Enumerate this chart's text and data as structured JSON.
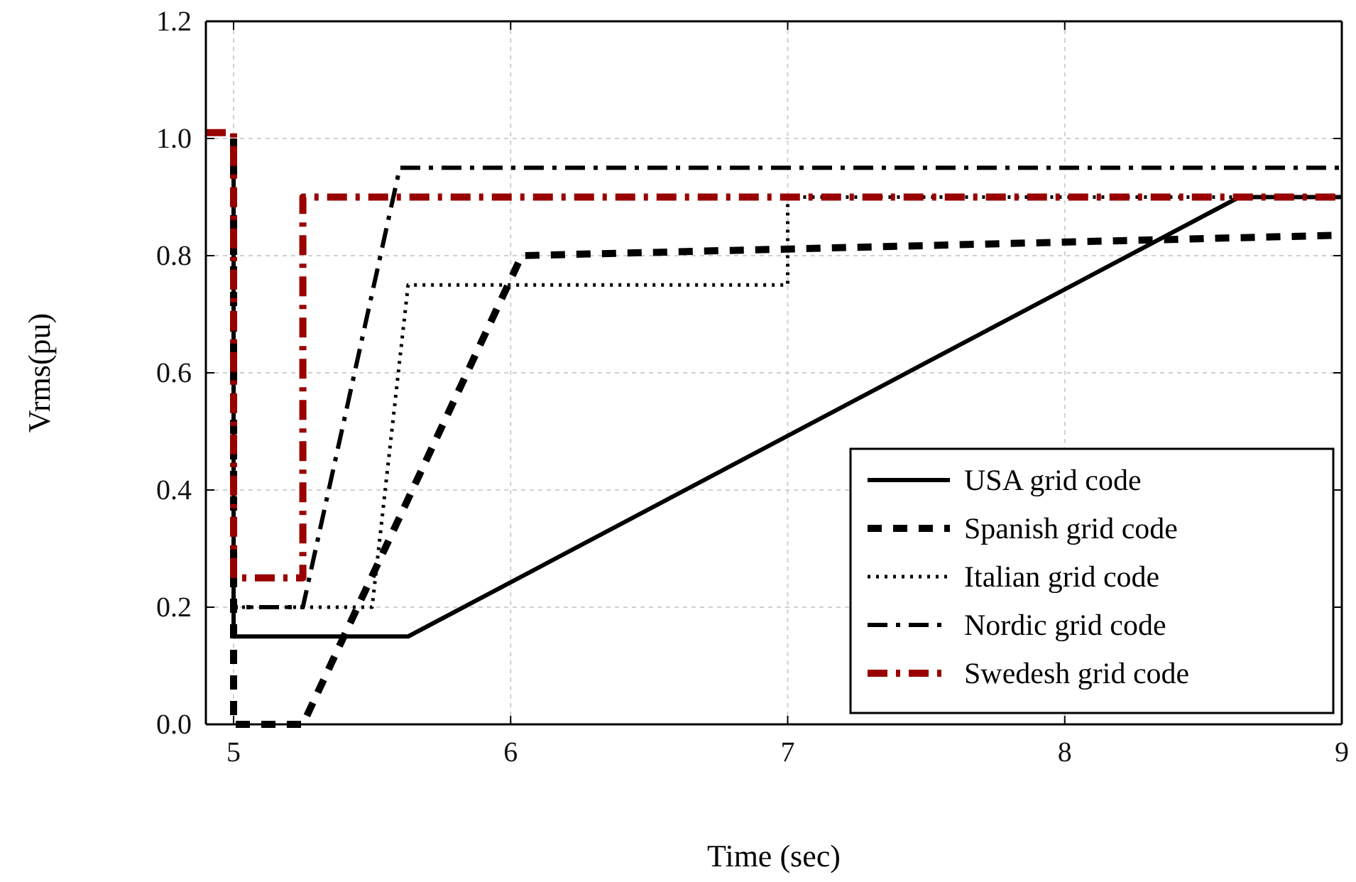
{
  "chart_data": {
    "type": "line",
    "xlabel": "Time (sec)",
    "ylabel": "Vrms(pu)",
    "xlim": [
      4.9,
      9
    ],
    "ylim": [
      0,
      1.2
    ],
    "xticks": [
      5,
      6,
      7,
      8,
      9
    ],
    "yticks": [
      {
        "value": 0,
        "label": "0.0"
      },
      {
        "value": 0.2,
        "label": "0.2"
      },
      {
        "value": 0.4,
        "label": "0.4"
      },
      {
        "value": 0.6,
        "label": "0.6"
      },
      {
        "value": 0.8,
        "label": "0.8"
      },
      {
        "value": 1,
        "label": "1.0"
      },
      {
        "value": 1.2,
        "label": "1.2"
      }
    ],
    "grid": true,
    "legend": "bottom right",
    "series": [
      {
        "name": "USA grid code",
        "color": "#000000",
        "line_style": "solid",
        "x": [
          5,
          5,
          5.63,
          8.63,
          9
        ],
        "values": [
          1.0,
          0.15,
          0.15,
          0.9,
          0.9
        ]
      },
      {
        "name": "Spanish grid code",
        "color": "#000000",
        "line_style": "dashed",
        "x": [
          5,
          5,
          5.25,
          6.04,
          9
        ],
        "values": [
          1.0,
          0,
          0,
          0.8,
          0.835
        ]
      },
      {
        "name": "Italian grid code",
        "color": "#000000",
        "line_style": "dotted",
        "x": [
          5,
          5,
          5.5,
          5.63,
          7,
          7,
          9
        ],
        "values": [
          1.0,
          0.2,
          0.2,
          0.75,
          0.75,
          0.9,
          0.9
        ]
      },
      {
        "name": "Nordic grid code",
        "color": "#000000",
        "line_style": "dashdot",
        "x": [
          5,
          5,
          5.25,
          5.6,
          9
        ],
        "values": [
          1.0,
          0.2,
          0.2,
          0.95,
          0.95
        ]
      },
      {
        "name": "Swedesh grid code",
        "color": "#990000",
        "line_style": "dashdot",
        "x": [
          4.9,
          5,
          5,
          5.25,
          5.25,
          9
        ],
        "values": [
          1.01,
          1.01,
          0.25,
          0.25,
          0.9,
          0.9
        ]
      }
    ]
  }
}
